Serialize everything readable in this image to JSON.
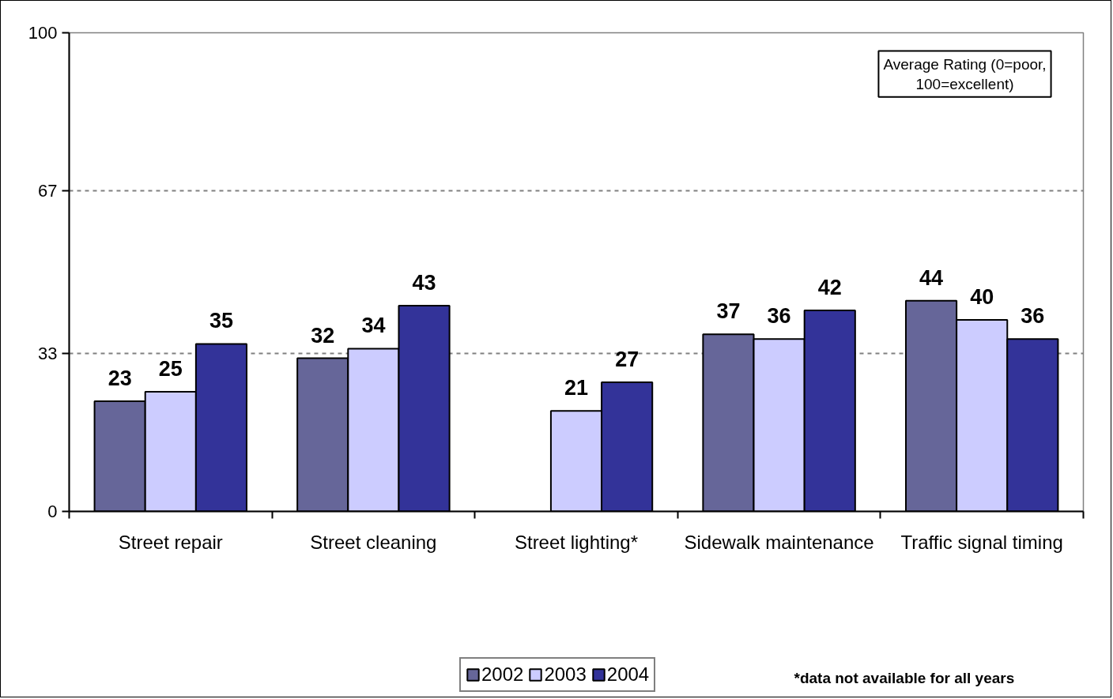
{
  "chart_data": {
    "type": "bar",
    "categories": [
      "Street repair",
      "Street cleaning",
      "Street lighting*",
      "Sidewalk maintenance",
      "Traffic signal timing"
    ],
    "series": [
      {
        "name": "2002",
        "color": "#666699",
        "values": [
          23,
          32,
          null,
          37,
          44
        ]
      },
      {
        "name": "2003",
        "color": "#ccccff",
        "values": [
          25,
          34,
          21,
          36,
          40
        ]
      },
      {
        "name": "2004",
        "color": "#333399",
        "values": [
          35,
          43,
          27,
          42,
          36
        ]
      }
    ],
    "ylim": [
      0,
      100
    ],
    "yticks": [
      0,
      33,
      67,
      100
    ],
    "grid": "y",
    "legend": "bottom",
    "data_labels": true,
    "annotations": [
      "Average Rating (0=poor, 100=excellent)",
      "*data not available for all years"
    ]
  }
}
